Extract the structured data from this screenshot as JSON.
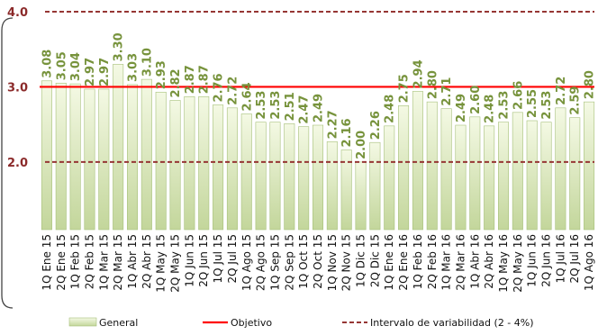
{
  "chart_data": {
    "type": "bar",
    "categories": [
      "1Q Ene 15",
      "2Q Ene 15",
      "1Q Feb 15",
      "2Q Feb 15",
      "1Q Mar 15",
      "2Q Mar 15",
      "1Q Abr 15",
      "2Q Abr 15",
      "1Q May 15",
      "2Q May 15",
      "1Q Jun 15",
      "2Q Jun 15",
      "1Q Jul 15",
      "2Q Jul 15",
      "1Q Ago 15",
      "2Q Ago 15",
      "1Q Sep 15",
      "2Q Sep 15",
      "1Q Oct 15",
      "2Q Oct 15",
      "1Q Nov 15",
      "2Q Nov 15",
      "1Q Dic 15",
      "2Q Dic 15",
      "1Q Ene 16",
      "2Q Ene 16",
      "1Q Feb 16",
      "2Q Feb 16",
      "1Q Mar 16",
      "2Q Mar 16",
      "1Q Abr 16",
      "2Q Abr 16",
      "1Q May 16",
      "2Q May 16",
      "1Q Jun 16",
      "2Q Jun 16",
      "1Q Jul 16",
      "2Q Jul 16",
      "1Q Ago 16"
    ],
    "series": [
      {
        "name": "General",
        "values": [
          3.08,
          3.05,
          3.04,
          2.97,
          2.97,
          3.3,
          3.03,
          3.1,
          2.93,
          2.82,
          2.87,
          2.87,
          2.76,
          2.72,
          2.64,
          2.53,
          2.53,
          2.51,
          2.47,
          2.49,
          2.27,
          2.16,
          2.0,
          2.26,
          2.48,
          2.75,
          2.94,
          2.8,
          2.71,
          2.49,
          2.6,
          2.48,
          2.53,
          2.66,
          2.55,
          2.53,
          2.72,
          2.59,
          2.8
        ]
      }
    ],
    "value_labels": [
      "3.08",
      "3.05",
      "3.04",
      "2.97",
      "2.97",
      "3.30",
      "3.03",
      "3.10",
      "2.93",
      "2.82",
      "2.87",
      "2.87",
      "2.76",
      "2.72",
      "2.64",
      "2.53",
      "2.53",
      "2.51",
      "2.47",
      "2.49",
      "2.27",
      "2.16",
      "2.00",
      "2.26",
      "2.48",
      "2.75",
      "2.94",
      "2.80",
      "2.71",
      "2.49",
      "2.60",
      "2.48",
      "2.53",
      "2.66",
      "2.55",
      "2.53",
      "2.72",
      "2.59",
      "2.80"
    ],
    "y_ticks": [
      "2.0",
      "3.0",
      "4.0"
    ],
    "y_tick_values": [
      2.0,
      3.0,
      4.0
    ],
    "ylim": [
      1.1,
      4.0
    ],
    "objective": {
      "name": "Objetivo",
      "value": 3.0
    },
    "variability_band": {
      "name": "Intervalo de variabilidad (2 - 4%)",
      "low": 2.0,
      "high": 4.0
    },
    "legend": [
      "General",
      "Objetivo",
      "Intervalo de variabilidad (2 - 4%)"
    ],
    "legend_position": "bottom",
    "grid": false,
    "title": "",
    "xlabel": "",
    "ylabel": ""
  },
  "colors": {
    "bar_top": "#f4f9e4",
    "bar_bottom": "#c3d69b",
    "bar_stroke": "#a6c07a",
    "value_label": "#77933c",
    "objective": "#ff0000",
    "band": "#963634",
    "axis_label": "#8b2a2a"
  }
}
